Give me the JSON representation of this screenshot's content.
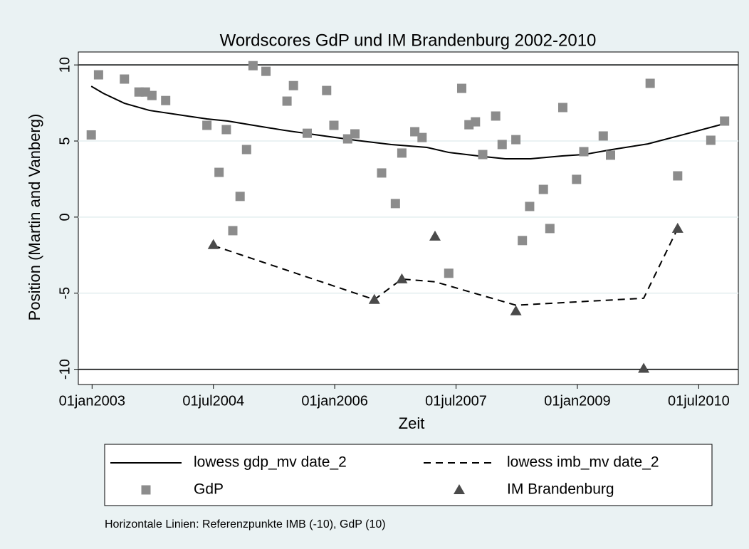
{
  "chart_data": {
    "type": "scatter",
    "title": "Wordscores GdP und IM Brandenburg 2002-2010",
    "x_label": "Zeit",
    "y_label": "Position (Martin and Vanberg)",
    "note": "Horizontale Linien: Referenzpunkte IMB (-10), GdP (10)",
    "xlim": [
      2002.83,
      2010.99
    ],
    "ylim": [
      -11,
      10.85
    ],
    "xticks": [
      {
        "value": 2003,
        "label": "01jan2003"
      },
      {
        "value": 2004.5,
        "label": "01jul2004"
      },
      {
        "value": 2006,
        "label": "01jan2006"
      },
      {
        "value": 2007.5,
        "label": "01jul2007"
      },
      {
        "value": 2009,
        "label": "01jan2009"
      },
      {
        "value": 2010.5,
        "label": "01jul2010"
      }
    ],
    "yticks": [
      -10,
      -5,
      0,
      5,
      10
    ],
    "grid": true,
    "reference_lines": [
      -10,
      10
    ],
    "series": [
      {
        "name": "lowess gdp_mv date_2",
        "kind": "line",
        "dash": false,
        "color": "#000000",
        "x": [
          2002.99,
          2003.14,
          2003.4,
          2003.71,
          2004.42,
          2004.68,
          2004.95,
          2005.38,
          2005.82,
          2006.26,
          2006.7,
          2007.14,
          2007.41,
          2007.85,
          2008.11,
          2008.42,
          2008.81,
          2009.08,
          2009.43,
          2009.87,
          2010.31,
          2010.84
        ],
        "values": [
          8.6,
          8.13,
          7.48,
          7.01,
          6.45,
          6.31,
          6.07,
          5.7,
          5.37,
          5.05,
          4.77,
          4.58,
          4.25,
          3.97,
          3.83,
          3.83,
          4.02,
          4.11,
          4.44,
          4.81,
          5.42,
          6.17
        ]
      },
      {
        "name": "lowess imb_mv date_2",
        "kind": "line",
        "dash": true,
        "color": "#000000",
        "x": [
          2004.5,
          2006.49,
          2006.83,
          2007.24,
          2008.24,
          2009.82,
          2010.24
        ],
        "values": [
          -1.87,
          -5.42,
          -4.07,
          -4.25,
          -5.79,
          -5.33,
          -0.75
        ]
      },
      {
        "name": "GdP",
        "kind": "points",
        "marker": "square",
        "color": "#8c8c8c",
        "x": [
          2002.99,
          2003.08,
          2003.4,
          2003.58,
          2003.66,
          2003.74,
          2003.91,
          2004.42,
          2004.57,
          2004.66,
          2004.74,
          2004.83,
          2004.91,
          2004.99,
          2005.15,
          2005.41,
          2005.49,
          2005.66,
          2005.9,
          2005.99,
          2006.16,
          2006.25,
          2006.58,
          2006.75,
          2006.83,
          2006.99,
          2007.08,
          2007.41,
          2007.57,
          2007.66,
          2007.74,
          2007.83,
          2007.99,
          2008.07,
          2008.24,
          2008.32,
          2008.41,
          2008.58,
          2008.66,
          2008.82,
          2008.99,
          2009.08,
          2009.32,
          2009.41,
          2009.9,
          2010.24,
          2010.65,
          2010.82
        ],
        "values": [
          5.4,
          9.35,
          9.07,
          8.22,
          8.22,
          7.99,
          7.66,
          6.03,
          2.94,
          5.75,
          -0.89,
          1.36,
          4.44,
          9.95,
          9.58,
          7.62,
          8.64,
          5.51,
          8.32,
          6.03,
          5.14,
          5.47,
          2.9,
          0.89,
          4.21,
          5.61,
          5.23,
          -3.69,
          8.46,
          6.07,
          6.26,
          4.11,
          6.64,
          4.77,
          5.09,
          -1.54,
          0.7,
          1.82,
          -0.75,
          7.2,
          2.48,
          4.3,
          5.33,
          4.07,
          8.79,
          2.71,
          5.05,
          6.31
        ]
      },
      {
        "name": "IM Brandenburg",
        "kind": "points",
        "marker": "triangle",
        "color": "#4a4a4a",
        "x": [
          2004.5,
          2006.49,
          2006.83,
          2007.24,
          2008.24,
          2009.82,
          2010.24
        ],
        "values": [
          -1.82,
          -5.42,
          -4.07,
          -1.26,
          -6.17,
          -9.95,
          -0.75
        ]
      }
    ]
  }
}
